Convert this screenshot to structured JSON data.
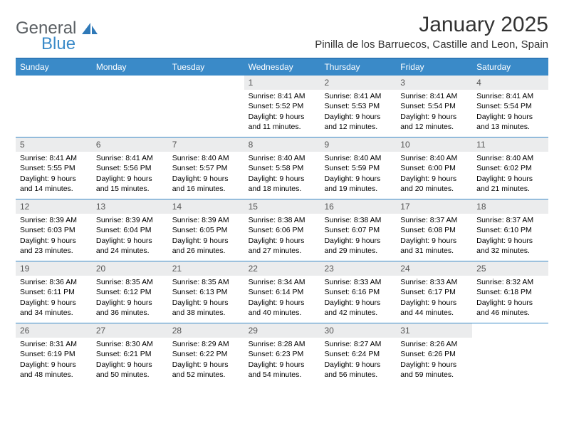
{
  "brand": {
    "general": "General",
    "blue": "Blue"
  },
  "title": {
    "month": "January 2025",
    "location": "Pinilla de los Barruecos, Castille and Leon, Spain"
  },
  "colors": {
    "header_bg": "#3a8ac8",
    "header_rule": "#2f79b8",
    "daynum_bg": "#ebeced",
    "text": "#000000",
    "title_text": "#333333"
  },
  "dayNames": [
    "Sunday",
    "Monday",
    "Tuesday",
    "Wednesday",
    "Thursday",
    "Friday",
    "Saturday"
  ],
  "weeks": [
    [
      {
        "n": "",
        "empty": true
      },
      {
        "n": "",
        "empty": true
      },
      {
        "n": "",
        "empty": true
      },
      {
        "n": "1",
        "sr": "Sunrise: 8:41 AM",
        "ss": "Sunset: 5:52 PM",
        "d1": "Daylight: 9 hours",
        "d2": "and 11 minutes."
      },
      {
        "n": "2",
        "sr": "Sunrise: 8:41 AM",
        "ss": "Sunset: 5:53 PM",
        "d1": "Daylight: 9 hours",
        "d2": "and 12 minutes."
      },
      {
        "n": "3",
        "sr": "Sunrise: 8:41 AM",
        "ss": "Sunset: 5:54 PM",
        "d1": "Daylight: 9 hours",
        "d2": "and 12 minutes."
      },
      {
        "n": "4",
        "sr": "Sunrise: 8:41 AM",
        "ss": "Sunset: 5:54 PM",
        "d1": "Daylight: 9 hours",
        "d2": "and 13 minutes."
      }
    ],
    [
      {
        "n": "5",
        "sr": "Sunrise: 8:41 AM",
        "ss": "Sunset: 5:55 PM",
        "d1": "Daylight: 9 hours",
        "d2": "and 14 minutes."
      },
      {
        "n": "6",
        "sr": "Sunrise: 8:41 AM",
        "ss": "Sunset: 5:56 PM",
        "d1": "Daylight: 9 hours",
        "d2": "and 15 minutes."
      },
      {
        "n": "7",
        "sr": "Sunrise: 8:40 AM",
        "ss": "Sunset: 5:57 PM",
        "d1": "Daylight: 9 hours",
        "d2": "and 16 minutes."
      },
      {
        "n": "8",
        "sr": "Sunrise: 8:40 AM",
        "ss": "Sunset: 5:58 PM",
        "d1": "Daylight: 9 hours",
        "d2": "and 18 minutes."
      },
      {
        "n": "9",
        "sr": "Sunrise: 8:40 AM",
        "ss": "Sunset: 5:59 PM",
        "d1": "Daylight: 9 hours",
        "d2": "and 19 minutes."
      },
      {
        "n": "10",
        "sr": "Sunrise: 8:40 AM",
        "ss": "Sunset: 6:00 PM",
        "d1": "Daylight: 9 hours",
        "d2": "and 20 minutes."
      },
      {
        "n": "11",
        "sr": "Sunrise: 8:40 AM",
        "ss": "Sunset: 6:02 PM",
        "d1": "Daylight: 9 hours",
        "d2": "and 21 minutes."
      }
    ],
    [
      {
        "n": "12",
        "sr": "Sunrise: 8:39 AM",
        "ss": "Sunset: 6:03 PM",
        "d1": "Daylight: 9 hours",
        "d2": "and 23 minutes."
      },
      {
        "n": "13",
        "sr": "Sunrise: 8:39 AM",
        "ss": "Sunset: 6:04 PM",
        "d1": "Daylight: 9 hours",
        "d2": "and 24 minutes."
      },
      {
        "n": "14",
        "sr": "Sunrise: 8:39 AM",
        "ss": "Sunset: 6:05 PM",
        "d1": "Daylight: 9 hours",
        "d2": "and 26 minutes."
      },
      {
        "n": "15",
        "sr": "Sunrise: 8:38 AM",
        "ss": "Sunset: 6:06 PM",
        "d1": "Daylight: 9 hours",
        "d2": "and 27 minutes."
      },
      {
        "n": "16",
        "sr": "Sunrise: 8:38 AM",
        "ss": "Sunset: 6:07 PM",
        "d1": "Daylight: 9 hours",
        "d2": "and 29 minutes."
      },
      {
        "n": "17",
        "sr": "Sunrise: 8:37 AM",
        "ss": "Sunset: 6:08 PM",
        "d1": "Daylight: 9 hours",
        "d2": "and 31 minutes."
      },
      {
        "n": "18",
        "sr": "Sunrise: 8:37 AM",
        "ss": "Sunset: 6:10 PM",
        "d1": "Daylight: 9 hours",
        "d2": "and 32 minutes."
      }
    ],
    [
      {
        "n": "19",
        "sr": "Sunrise: 8:36 AM",
        "ss": "Sunset: 6:11 PM",
        "d1": "Daylight: 9 hours",
        "d2": "and 34 minutes."
      },
      {
        "n": "20",
        "sr": "Sunrise: 8:35 AM",
        "ss": "Sunset: 6:12 PM",
        "d1": "Daylight: 9 hours",
        "d2": "and 36 minutes."
      },
      {
        "n": "21",
        "sr": "Sunrise: 8:35 AM",
        "ss": "Sunset: 6:13 PM",
        "d1": "Daylight: 9 hours",
        "d2": "and 38 minutes."
      },
      {
        "n": "22",
        "sr": "Sunrise: 8:34 AM",
        "ss": "Sunset: 6:14 PM",
        "d1": "Daylight: 9 hours",
        "d2": "and 40 minutes."
      },
      {
        "n": "23",
        "sr": "Sunrise: 8:33 AM",
        "ss": "Sunset: 6:16 PM",
        "d1": "Daylight: 9 hours",
        "d2": "and 42 minutes."
      },
      {
        "n": "24",
        "sr": "Sunrise: 8:33 AM",
        "ss": "Sunset: 6:17 PM",
        "d1": "Daylight: 9 hours",
        "d2": "and 44 minutes."
      },
      {
        "n": "25",
        "sr": "Sunrise: 8:32 AM",
        "ss": "Sunset: 6:18 PM",
        "d1": "Daylight: 9 hours",
        "d2": "and 46 minutes."
      }
    ],
    [
      {
        "n": "26",
        "sr": "Sunrise: 8:31 AM",
        "ss": "Sunset: 6:19 PM",
        "d1": "Daylight: 9 hours",
        "d2": "and 48 minutes."
      },
      {
        "n": "27",
        "sr": "Sunrise: 8:30 AM",
        "ss": "Sunset: 6:21 PM",
        "d1": "Daylight: 9 hours",
        "d2": "and 50 minutes."
      },
      {
        "n": "28",
        "sr": "Sunrise: 8:29 AM",
        "ss": "Sunset: 6:22 PM",
        "d1": "Daylight: 9 hours",
        "d2": "and 52 minutes."
      },
      {
        "n": "29",
        "sr": "Sunrise: 8:28 AM",
        "ss": "Sunset: 6:23 PM",
        "d1": "Daylight: 9 hours",
        "d2": "and 54 minutes."
      },
      {
        "n": "30",
        "sr": "Sunrise: 8:27 AM",
        "ss": "Sunset: 6:24 PM",
        "d1": "Daylight: 9 hours",
        "d2": "and 56 minutes."
      },
      {
        "n": "31",
        "sr": "Sunrise: 8:26 AM",
        "ss": "Sunset: 6:26 PM",
        "d1": "Daylight: 9 hours",
        "d2": "and 59 minutes."
      },
      {
        "n": "",
        "empty": true
      }
    ]
  ]
}
